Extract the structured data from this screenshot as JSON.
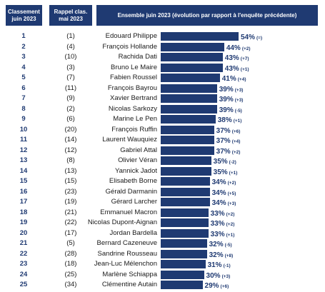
{
  "headers": {
    "col1": [
      "Classement",
      "juin 2023"
    ],
    "col2": [
      "Rappel clas.",
      "mai 2023"
    ],
    "col3": "Ensemble juin 2023 (évolution par rapport à l'enquête précédente)"
  },
  "colors": {
    "bar": "#1f3a72",
    "header_bg": "#1f3a72",
    "text": "#1a1a1a"
  },
  "chart_data": {
    "type": "bar",
    "orientation": "horizontal",
    "title": "Ensemble juin 2023 (évolution par rapport à l'enquête précédente)",
    "xlim": [
      0,
      60
    ],
    "rows": [
      {
        "rank": "1",
        "previous": "(1)",
        "name": "Edouard Philippe",
        "value": 54,
        "label": "54%",
        "change": "(=)"
      },
      {
        "rank": "2",
        "previous": "(4)",
        "name": "François Hollande",
        "value": 44,
        "label": "44%",
        "change": "(+2)"
      },
      {
        "rank": "3",
        "previous": "(10)",
        "name": "Rachida Dati",
        "value": 43,
        "label": "43%",
        "change": "(+7)"
      },
      {
        "rank": "4",
        "previous": "(3)",
        "name": "Bruno Le Maire",
        "value": 43,
        "label": "43%",
        "change": "(+1)"
      },
      {
        "rank": "5",
        "previous": "(7)",
        "name": "Fabien Roussel",
        "value": 41,
        "label": "41%",
        "change": "(+4)"
      },
      {
        "rank": "6",
        "previous": "(11)",
        "name": "François Bayrou",
        "value": 39,
        "label": "39%",
        "change": "(+3)"
      },
      {
        "rank": "7",
        "previous": "(9)",
        "name": "Xavier Bertrand",
        "value": 39,
        "label": "39%",
        "change": "(+3)"
      },
      {
        "rank": "8",
        "previous": "(2)",
        "name": "Nicolas Sarkozy",
        "value": 39,
        "label": "39%",
        "change": "(-5)"
      },
      {
        "rank": "9",
        "previous": "(6)",
        "name": "Marine Le Pen",
        "value": 38,
        "label": "38%",
        "change": "(+1)"
      },
      {
        "rank": "10",
        "previous": "(20)",
        "name": "François Ruffin",
        "value": 37,
        "label": "37%",
        "change": "(+6)"
      },
      {
        "rank": "11",
        "previous": "(14)",
        "name": "Laurent Wauquiez",
        "value": 37,
        "label": "37%",
        "change": "(+4)"
      },
      {
        "rank": "12",
        "previous": "(12)",
        "name": "Gabriel Attal",
        "value": 37,
        "label": "37%",
        "change": "(+2)"
      },
      {
        "rank": "13",
        "previous": "(8)",
        "name": "Olivier Véran",
        "value": 35,
        "label": "35%",
        "change": "(-2)"
      },
      {
        "rank": "14",
        "previous": "(13)",
        "name": "Yannick Jadot",
        "value": 35,
        "label": "35%",
        "change": "(+1)"
      },
      {
        "rank": "15",
        "previous": "(15)",
        "name": "Elisabeth Borne",
        "value": 34,
        "label": "34%",
        "change": "(+2)"
      },
      {
        "rank": "16",
        "previous": "(23)",
        "name": "Gérald Darmanin",
        "value": 34,
        "label": "34%",
        "change": "(+5)"
      },
      {
        "rank": "17",
        "previous": "(19)",
        "name": "Gérard Larcher",
        "value": 34,
        "label": "34%",
        "change": "(+3)"
      },
      {
        "rank": "18",
        "previous": "(21)",
        "name": "Emmanuel Macron",
        "value": 33,
        "label": "33%",
        "change": "(+2)"
      },
      {
        "rank": "19",
        "previous": "(22)",
        "name": "Nicolas Dupont-Aignan",
        "value": 33,
        "label": "33%",
        "change": "(+2)"
      },
      {
        "rank": "20",
        "previous": "(17)",
        "name": "Jordan Bardella",
        "value": 33,
        "label": "33%",
        "change": "(+1)"
      },
      {
        "rank": "21",
        "previous": "(5)",
        "name": "Bernard Cazeneuve",
        "value": 32,
        "label": "32%",
        "change": "(-5)"
      },
      {
        "rank": "22",
        "previous": "(28)",
        "name": "Sandrine Rousseau",
        "value": 32,
        "label": "32%",
        "change": "(+8)"
      },
      {
        "rank": "23",
        "previous": "(18)",
        "name": "Jean-Luc Mélenchon",
        "value": 31,
        "label": "31%",
        "change": "(-1)"
      },
      {
        "rank": "24",
        "previous": "(25)",
        "name": "Marlène Schiappa",
        "value": 30,
        "label": "30%",
        "change": "(+3)"
      },
      {
        "rank": "25",
        "previous": "(34)",
        "name": "Clémentine Autain",
        "value": 29,
        "label": "29%",
        "change": "(+6)"
      }
    ]
  }
}
